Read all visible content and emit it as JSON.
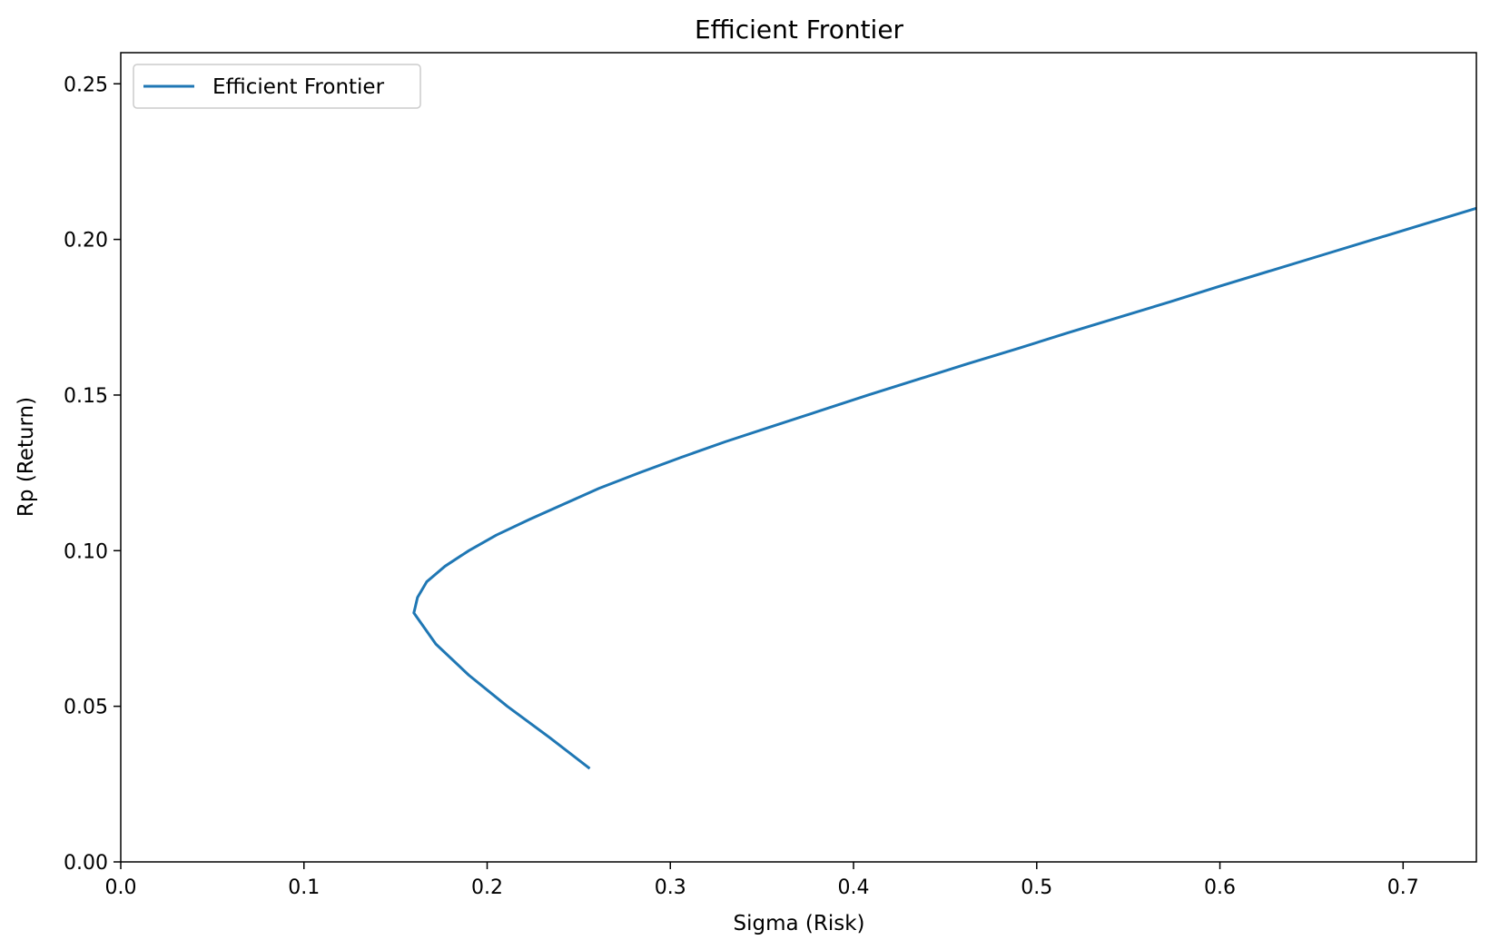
{
  "chart_data": {
    "type": "line",
    "title": "Efficient Frontier",
    "xlabel": "Sigma (Risk)",
    "ylabel": "Rp (Return)",
    "xlim": [
      0.0,
      0.74
    ],
    "ylim": [
      0.0,
      0.26
    ],
    "x_ticks": [
      0.0,
      0.1,
      0.2,
      0.3,
      0.4,
      0.5,
      0.6,
      0.7
    ],
    "x_tick_labels": [
      "0.0",
      "0.1",
      "0.2",
      "0.3",
      "0.4",
      "0.5",
      "0.6",
      "0.7"
    ],
    "y_ticks": [
      0.0,
      0.05,
      0.1,
      0.15,
      0.2,
      0.25
    ],
    "y_tick_labels": [
      "0.00",
      "0.05",
      "0.10",
      "0.15",
      "0.20",
      "0.25"
    ],
    "grid": false,
    "legend": {
      "position": "top-left",
      "entries": [
        "Efficient Frontier"
      ]
    },
    "series": [
      {
        "name": "Efficient Frontier",
        "color": "#1f77b4",
        "points": [
          [
            0.256,
            0.03
          ],
          [
            0.234,
            0.04
          ],
          [
            0.211,
            0.05
          ],
          [
            0.19,
            0.06
          ],
          [
            0.172,
            0.07
          ],
          [
            0.16,
            0.08
          ],
          [
            0.162,
            0.085
          ],
          [
            0.167,
            0.09
          ],
          [
            0.177,
            0.095
          ],
          [
            0.19,
            0.1
          ],
          [
            0.205,
            0.105
          ],
          [
            0.223,
            0.11
          ],
          [
            0.242,
            0.115
          ],
          [
            0.261,
            0.12
          ],
          [
            0.283,
            0.125
          ],
          [
            0.306,
            0.13
          ],
          [
            0.33,
            0.135
          ],
          [
            0.356,
            0.14
          ],
          [
            0.382,
            0.145
          ],
          [
            0.408,
            0.15
          ],
          [
            0.435,
            0.155
          ],
          [
            0.462,
            0.16
          ],
          [
            0.49,
            0.165
          ],
          [
            0.517,
            0.17
          ],
          [
            0.545,
            0.175
          ],
          [
            0.573,
            0.18
          ],
          [
            0.6,
            0.185
          ],
          [
            0.628,
            0.19
          ],
          [
            0.656,
            0.195
          ],
          [
            0.684,
            0.2
          ],
          [
            0.712,
            0.205
          ],
          [
            0.74,
            0.21
          ],
          [
            0.768,
            0.215
          ]
        ]
      }
    ]
  }
}
